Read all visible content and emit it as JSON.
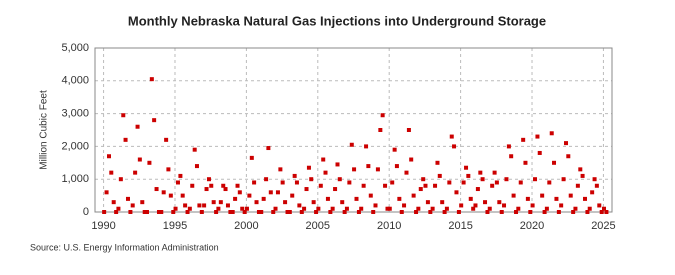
{
  "chart_data": {
    "type": "scatter",
    "title": "Monthly Nebraska Natural Gas Injections into Underground Storage",
    "y_label": "Million Cubic Feet",
    "source": "Source: U.S. Energy Information Administration",
    "color": "#cc0000",
    "grid": true,
    "xlim": [
      1989.4,
      2025.6
    ],
    "xticks": [
      1990,
      1995,
      2000,
      2005,
      2010,
      2015,
      2020,
      2025
    ],
    "ylim": [
      0,
      5000
    ],
    "yticks": [
      0,
      {
        "value": 1000,
        "label": "1,000"
      },
      {
        "value": 2000,
        "label": "2,000"
      },
      {
        "value": 3000,
        "label": "3,000"
      },
      {
        "value": 4000,
        "label": "4,000"
      },
      {
        "value": 5000,
        "label": "5,000"
      }
    ],
    "x": [
      1990.04,
      1990.21,
      1990.38,
      1990.54,
      1990.71,
      1990.88,
      1991.04,
      1991.21,
      1991.38,
      1991.54,
      1991.71,
      1991.88,
      1992.04,
      1992.21,
      1992.38,
      1992.54,
      1992.71,
      1992.88,
      1993.04,
      1993.21,
      1993.38,
      1993.54,
      1993.71,
      1993.88,
      1994.04,
      1994.21,
      1994.38,
      1994.54,
      1994.71,
      1994.88,
      1995.04,
      1995.21,
      1995.38,
      1995.54,
      1995.71,
      1995.88,
      1996.04,
      1996.21,
      1996.38,
      1996.54,
      1996.71,
      1996.88,
      1997.04,
      1997.21,
      1997.38,
      1997.54,
      1997.71,
      1997.88,
      1998.04,
      1998.21,
      1998.38,
      1998.54,
      1998.71,
      1998.88,
      1999.04,
      1999.21,
      1999.38,
      1999.54,
      1999.71,
      1999.88,
      2000.04,
      2000.21,
      2000.38,
      2000.54,
      2000.71,
      2000.88,
      2001.04,
      2001.21,
      2001.38,
      2001.54,
      2001.71,
      2001.88,
      2002.04,
      2002.21,
      2002.38,
      2002.54,
      2002.71,
      2002.88,
      2003.04,
      2003.21,
      2003.38,
      2003.54,
      2003.71,
      2003.88,
      2004.04,
      2004.21,
      2004.38,
      2004.54,
      2004.71,
      2004.88,
      2005.04,
      2005.21,
      2005.38,
      2005.54,
      2005.71,
      2005.88,
      2006.04,
      2006.21,
      2006.38,
      2006.54,
      2006.71,
      2006.88,
      2007.04,
      2007.21,
      2007.38,
      2007.54,
      2007.71,
      2007.88,
      2008.04,
      2008.21,
      2008.38,
      2008.54,
      2008.71,
      2008.88,
      2009.04,
      2009.21,
      2009.38,
      2009.54,
      2009.71,
      2009.88,
      2010.04,
      2010.21,
      2010.38,
      2010.54,
      2010.71,
      2010.88,
      2011.04,
      2011.21,
      2011.38,
      2011.54,
      2011.71,
      2011.88,
      2012.04,
      2012.21,
      2012.38,
      2012.54,
      2012.71,
      2012.88,
      2013.04,
      2013.21,
      2013.38,
      2013.54,
      2013.71,
      2013.88,
      2014.04,
      2014.21,
      2014.38,
      2014.54,
      2014.71,
      2014.88,
      2015.04,
      2015.21,
      2015.38,
      2015.54,
      2015.71,
      2015.88,
      2016.04,
      2016.21,
      2016.38,
      2016.54,
      2016.71,
      2016.88,
      2017.04,
      2017.21,
      2017.38,
      2017.54,
      2017.71,
      2017.88,
      2018.04,
      2018.21,
      2018.38,
      2018.54,
      2018.71,
      2018.88,
      2019.04,
      2019.21,
      2019.38,
      2019.54,
      2019.71,
      2019.88,
      2020.04,
      2020.21,
      2020.38,
      2020.54,
      2020.71,
      2020.88,
      2021.04,
      2021.21,
      2021.38,
      2021.54,
      2021.71,
      2021.88,
      2022.04,
      2022.21,
      2022.38,
      2022.54,
      2022.71,
      2022.88,
      2023.04,
      2023.21,
      2023.38,
      2023.54,
      2023.71,
      2023.88,
      2024.04,
      2024.21,
      2024.38,
      2024.54,
      2024.71,
      2024.88,
      2025.04,
      2025.21
    ],
    "values": [
      0,
      600,
      1700,
      1200,
      300,
      0,
      100,
      1000,
      2950,
      2200,
      400,
      0,
      200,
      1200,
      2600,
      1600,
      300,
      0,
      0,
      1500,
      4050,
      2800,
      700,
      0,
      0,
      600,
      2200,
      1300,
      500,
      0,
      100,
      900,
      1100,
      500,
      200,
      0,
      100,
      800,
      1900,
      1400,
      200,
      0,
      200,
      700,
      1000,
      800,
      300,
      0,
      100,
      300,
      800,
      700,
      200,
      0,
      0,
      400,
      800,
      600,
      100,
      0,
      100,
      500,
      1650,
      900,
      300,
      0,
      0,
      400,
      1000,
      1950,
      600,
      0,
      100,
      600,
      1300,
      900,
      300,
      0,
      0,
      500,
      1100,
      900,
      200,
      0,
      100,
      700,
      1350,
      1000,
      300,
      0,
      100,
      800,
      1600,
      1200,
      400,
      0,
      100,
      700,
      1450,
      1000,
      300,
      0,
      100,
      900,
      2050,
      1300,
      400,
      0,
      100,
      800,
      2000,
      1400,
      500,
      0,
      200,
      1300,
      2500,
      2950,
      800,
      100,
      100,
      900,
      1900,
      1400,
      400,
      0,
      200,
      1200,
      2500,
      1600,
      500,
      0,
      100,
      700,
      1000,
      800,
      300,
      0,
      100,
      800,
      1500,
      1100,
      300,
      0,
      100,
      900,
      2300,
      2000,
      600,
      0,
      200,
      900,
      1350,
      1100,
      400,
      100,
      200,
      700,
      1200,
      1000,
      300,
      0,
      100,
      800,
      1200,
      900,
      300,
      0,
      200,
      1000,
      2000,
      1700,
      500,
      0,
      100,
      900,
      2200,
      1500,
      400,
      0,
      200,
      1000,
      2300,
      1800,
      500,
      0,
      100,
      900,
      2400,
      1500,
      400,
      0,
      200,
      1000,
      2100,
      1700,
      500,
      0,
      100,
      800,
      1300,
      1100,
      400,
      0,
      100,
      600,
      1000,
      800,
      200,
      0,
      100,
      0
    ]
  }
}
